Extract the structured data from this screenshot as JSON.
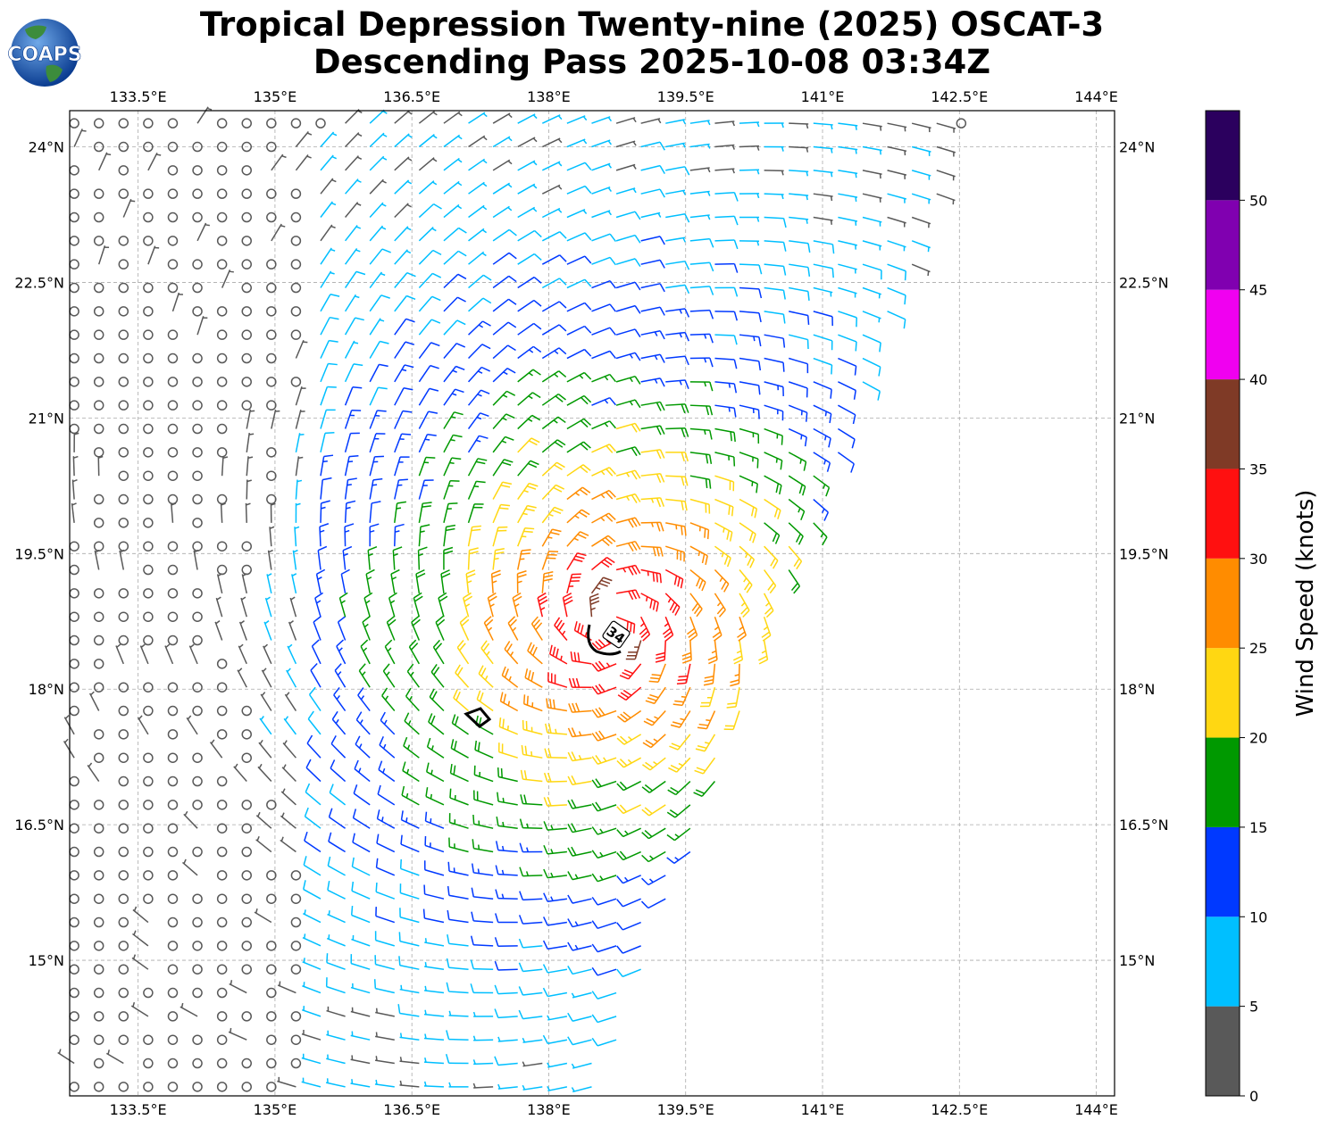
{
  "title": {
    "line1": "Tropical Depression Twenty-nine (2025) OSCAT-3",
    "line2": "Descending Pass 2025-10-08 03:34Z"
  },
  "logo": {
    "text": "COAPS"
  },
  "map": {
    "lon_range": [
      132.75,
      144.2
    ],
    "lat_range": [
      13.5,
      24.4
    ],
    "lon_ticks": [
      "133.5°E",
      "135°E",
      "136.5°E",
      "138°E",
      "139.5°E",
      "141°E",
      "142.5°E",
      "144°E"
    ],
    "lon_tick_values": [
      133.5,
      135,
      136.5,
      138,
      139.5,
      141,
      142.5,
      144
    ],
    "lat_ticks": [
      "24°N",
      "22.5°N",
      "21°N",
      "19.5°N",
      "18°N",
      "16.5°N",
      "15°N"
    ],
    "lat_tick_values": [
      24,
      22.5,
      21,
      19.5,
      18,
      16.5,
      15
    ],
    "gridlines": true,
    "storm_center": {
      "lon": 138.7,
      "lat": 18.75
    },
    "radius_label": "34"
  },
  "colorbar": {
    "label": "Wind Speed (knots)",
    "ticks": [
      "0",
      "5",
      "10",
      "15",
      "20",
      "25",
      "30",
      "35",
      "40",
      "45",
      "50"
    ],
    "bins": [
      {
        "from": 0,
        "to": 5,
        "color": "#595959"
      },
      {
        "from": 5,
        "to": 10,
        "color": "#00bfff"
      },
      {
        "from": 10,
        "to": 15,
        "color": "#0039ff"
      },
      {
        "from": 15,
        "to": 20,
        "color": "#009900"
      },
      {
        "from": 20,
        "to": 25,
        "color": "#ffd712"
      },
      {
        "from": 25,
        "to": 30,
        "color": "#ff8c00"
      },
      {
        "from": 30,
        "to": 35,
        "color": "#ff1010"
      },
      {
        "from": 35,
        "to": 40,
        "color": "#7f3a26"
      },
      {
        "from": 40,
        "to": 45,
        "color": "#f000f0"
      },
      {
        "from": 45,
        "to": 50,
        "color": "#8000b0"
      },
      {
        "from": 50,
        "to": 55,
        "color": "#2b005e"
      }
    ]
  }
}
